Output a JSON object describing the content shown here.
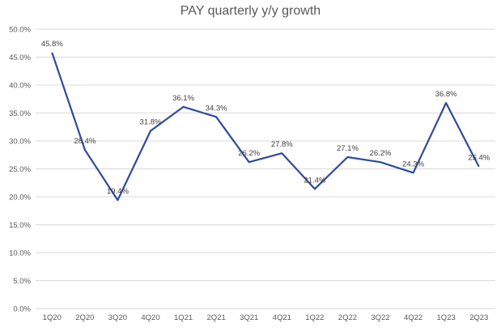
{
  "chart_data": {
    "type": "line",
    "title": "PAY quarterly y/y growth",
    "xlabel": "",
    "ylabel": "",
    "categories": [
      "1Q20",
      "2Q20",
      "3Q20",
      "4Q20",
      "1Q21",
      "2Q21",
      "3Q21",
      "4Q21",
      "1Q22",
      "2Q22",
      "3Q22",
      "4Q22",
      "1Q23",
      "2Q23"
    ],
    "series": [
      {
        "values": [
          45.8,
          28.4,
          19.4,
          31.8,
          36.1,
          34.3,
          26.2,
          27.8,
          21.4,
          27.1,
          26.2,
          24.3,
          36.8,
          25.4
        ],
        "labels": [
          "45.8%",
          "28.4%",
          "19.4%",
          "31.8%",
          "36.1%",
          "34.3%",
          "26.2%",
          "27.8%",
          "21.4%",
          "27.1%",
          "26.2%",
          "24.3%",
          "36.8%",
          "25.4%"
        ]
      }
    ],
    "ylim": [
      0,
      50
    ],
    "yticks": [
      0,
      5,
      10,
      15,
      20,
      25,
      30,
      35,
      40,
      45,
      50
    ],
    "ytick_labels": [
      "0.0%",
      "5.0%",
      "10.0%",
      "15.0%",
      "20.0%",
      "25.0%",
      "30.0%",
      "35.0%",
      "40.0%",
      "45.0%",
      "50.0%"
    ],
    "grid": true,
    "legend": "none",
    "colors": {
      "line": "#2F4B9B",
      "grid": "#D9D9D9",
      "text": "#595959"
    }
  }
}
